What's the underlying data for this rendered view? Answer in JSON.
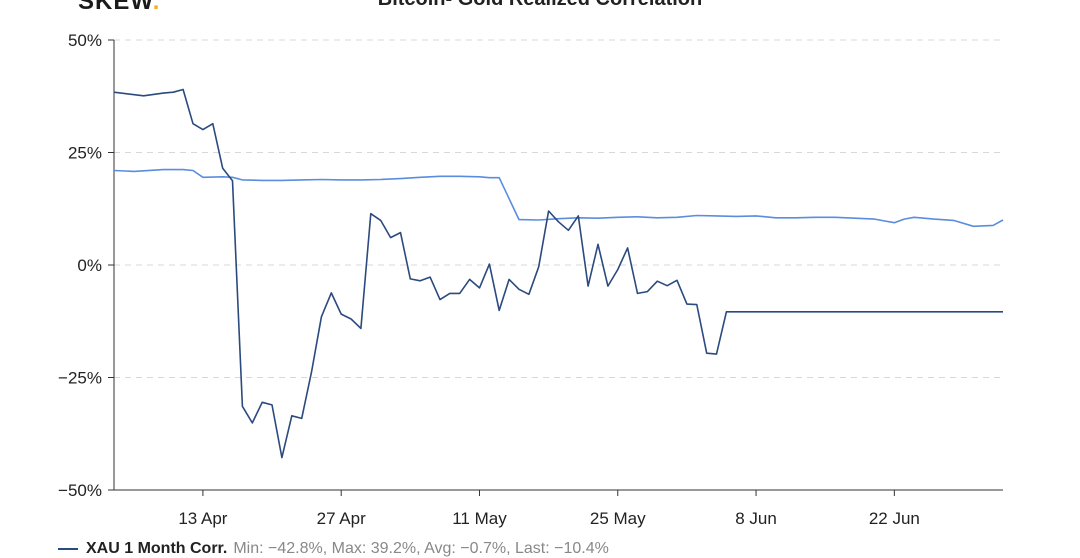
{
  "header": {
    "brand": "SKEW",
    "brand_dot": "."
  },
  "chart_data": {
    "type": "line",
    "title": "Bitcoin- Gold Realized Correlation",
    "xlabel": "",
    "ylabel": "",
    "ylim": [
      -50,
      50
    ],
    "y_ticks": [
      "50%",
      "25%",
      "0%",
      "−25%",
      "−50%"
    ],
    "y_tick_values": [
      50,
      25,
      0,
      -25,
      -50
    ],
    "x_ticks": [
      "13 Apr",
      "27 Apr",
      "11 May",
      "25 May",
      "8 Jun",
      "22 Jun"
    ],
    "x_tick_index": [
      9,
      23,
      37,
      51,
      65,
      79
    ],
    "x_count": 91,
    "grid": true,
    "legend_position": "bottom-left",
    "series": [
      {
        "name": "XAU 1 Month Corr.",
        "color": "#2b4a7e",
        "stats": "Min: −42.8%, Max: 39.2%, Avg: −0.7%, Last: −10.4%",
        "x": [
          0,
          3,
          5,
          6,
          7,
          8,
          9,
          10,
          11,
          12,
          13,
          14,
          15,
          16,
          17,
          18,
          19,
          20,
          21,
          22,
          23,
          24,
          25,
          26,
          27,
          28,
          29,
          30,
          31,
          32,
          33,
          34,
          35,
          36,
          37,
          38,
          39,
          40,
          41,
          42,
          43,
          44,
          45,
          46,
          47,
          48,
          49,
          50,
          51,
          52,
          53,
          54,
          55,
          56,
          57,
          58,
          59,
          60,
          61,
          62,
          63,
          64,
          65,
          66,
          67,
          68,
          69,
          70,
          71,
          72,
          73,
          74,
          75,
          76,
          77,
          78,
          79,
          80,
          81,
          82,
          83,
          84,
          85,
          86,
          87,
          88,
          89,
          90
        ],
        "values": [
          38.4,
          37.6,
          38.2,
          38.4,
          39.0,
          31.4,
          30.1,
          31.4,
          21.5,
          18.7,
          -31.4,
          -35.1,
          -30.5,
          -31.1,
          -42.8,
          -33.5,
          -34.1,
          -23.7,
          -11.5,
          -6.2,
          -10.9,
          -12.0,
          -14.1,
          11.4,
          9.9,
          6.1,
          7.2,
          -3.1,
          -3.5,
          -2.7,
          -7.7,
          -6.3,
          -6.3,
          -3.2,
          -5.1,
          0.2,
          -10.1,
          -3.2,
          -5.4,
          -6.5,
          -0.4,
          12.0,
          9.6,
          7.7,
          10.9,
          -4.7,
          4.6,
          -4.7,
          -1.0,
          3.8,
          -6.3,
          -5.9,
          -3.6,
          -4.6,
          -3.4,
          -8.7,
          -8.8,
          -19.6,
          -19.8,
          -10.4,
          -10.4,
          -10.4,
          -10.4,
          -10.4,
          -10.4,
          -10.4,
          -10.4,
          -10.4,
          -10.4,
          -10.4,
          -10.4,
          -10.4,
          -10.4,
          -10.4,
          -10.4,
          -10.4,
          -10.4,
          -10.4,
          -10.4,
          -10.4,
          -10.4,
          -10.4,
          -10.4,
          -10.4,
          -10.4,
          -10.4,
          -10.4,
          -10.4
        ]
      },
      {
        "name": "",
        "color": "#5a8de0",
        "x": [
          0,
          2,
          5,
          7,
          8,
          9,
          11,
          12,
          13,
          15,
          17,
          19,
          21,
          23,
          25,
          27,
          29,
          31,
          33,
          35,
          37,
          38,
          39,
          41,
          43,
          45,
          47,
          49,
          51,
          53,
          55,
          57,
          59,
          61,
          63,
          65,
          67,
          69,
          71,
          73,
          75,
          77,
          79,
          80,
          81,
          83,
          85,
          87,
          89,
          90
        ],
        "values": [
          21.0,
          20.8,
          21.2,
          21.2,
          21.0,
          19.5,
          19.6,
          19.5,
          18.9,
          18.8,
          18.8,
          18.9,
          19.0,
          18.9,
          18.9,
          19.0,
          19.2,
          19.5,
          19.7,
          19.7,
          19.6,
          19.4,
          19.4,
          10.1,
          10.0,
          10.3,
          10.5,
          10.4,
          10.6,
          10.7,
          10.5,
          10.6,
          11.0,
          10.9,
          10.8,
          10.9,
          10.5,
          10.5,
          10.6,
          10.6,
          10.4,
          10.2,
          9.4,
          10.2,
          10.6,
          10.2,
          9.9,
          8.6,
          8.8,
          10.0
        ]
      }
    ]
  }
}
